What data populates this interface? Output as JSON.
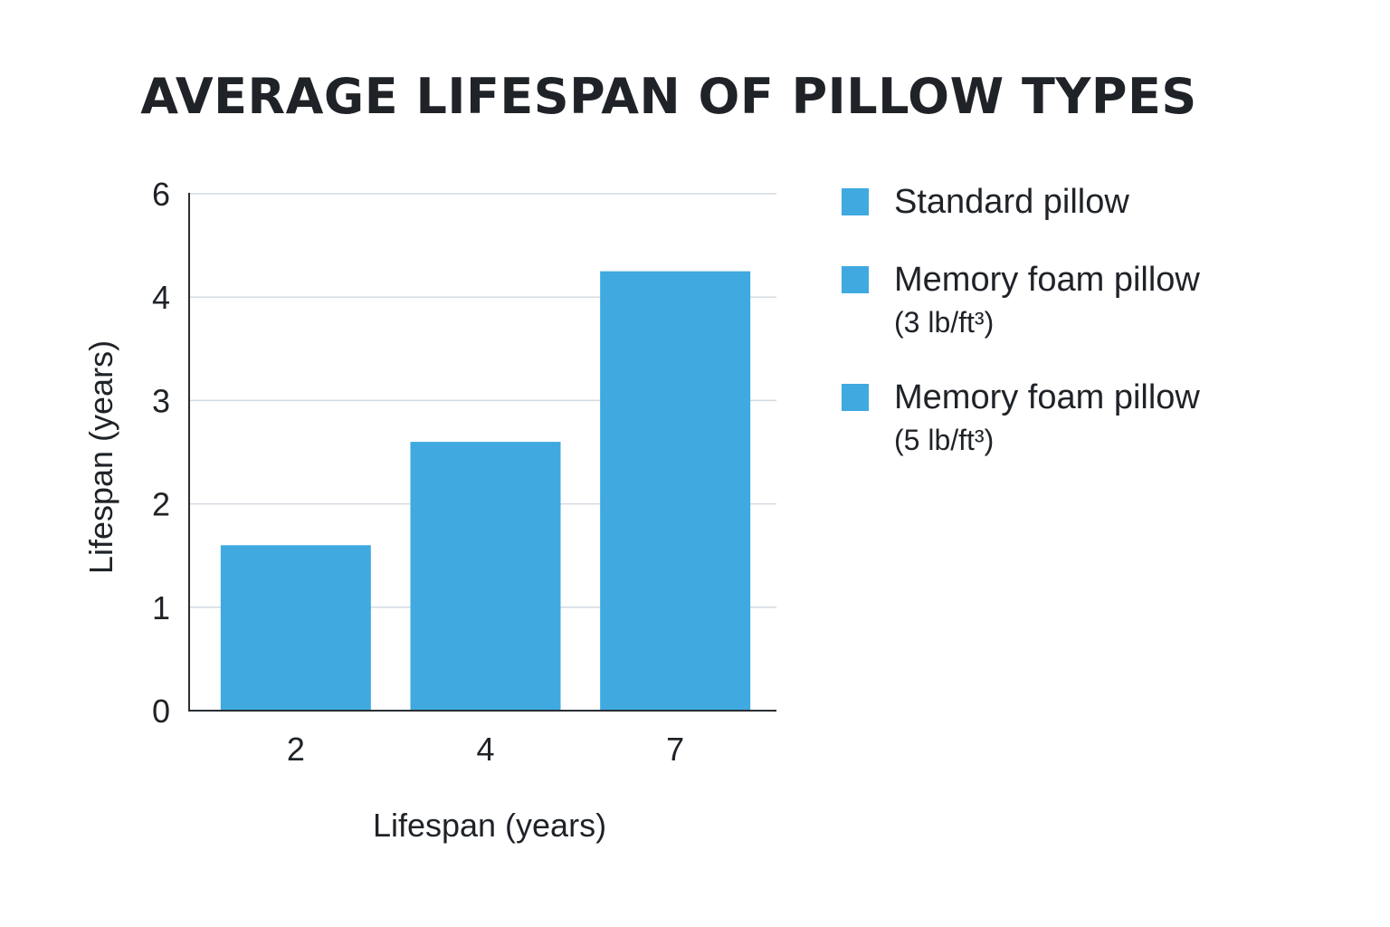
{
  "chart_data": {
    "type": "bar",
    "title": "AVERAGE LIFESPAN OF PILLOW TYPES",
    "categories": [
      "2",
      "4",
      "7"
    ],
    "values": [
      1.6,
      2.6,
      4.5
    ],
    "ylabel": "Lifespan (years)",
    "xlabel": "Lifespan (years)",
    "yticks": [
      "0",
      "1",
      "2",
      "3",
      "4",
      "6"
    ],
    "ylim": [
      0,
      6
    ],
    "grid": true,
    "legend_position": "right",
    "bar_color": "#3fa9e0",
    "legend": [
      {
        "name": "Standard pillow",
        "sub": ""
      },
      {
        "name": "Memory foam pillow",
        "sub": "(3 lb/ft³)"
      },
      {
        "name": "Memory foam pillow",
        "sub": "(5 lb/ft³)"
      }
    ]
  }
}
